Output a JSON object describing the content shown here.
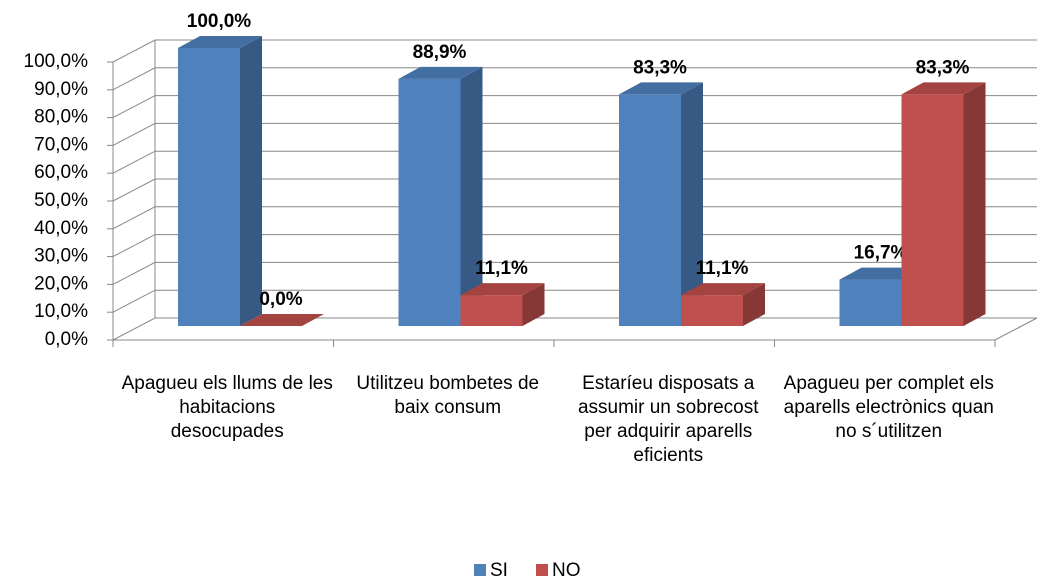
{
  "chart_data": {
    "type": "bar3d",
    "categories": [
      "Apagueu els llums de les habitacions desocupades",
      "Utilitzeu bombetes de baix consum",
      "Estaríeu disposats a assumir un sobrecost per adquirir aparells eficients",
      "Apagueu per complet els aparells electrònics quan no s´utilitzen"
    ],
    "series": [
      {
        "name": "SI",
        "color": "#4f81bd",
        "values": [
          100,
          88.9,
          83.3,
          16.7
        ],
        "value_labels": [
          "100,0%",
          "88,9%",
          "83,3%",
          "16,7%"
        ]
      },
      {
        "name": "NO",
        "color": "#c0504d",
        "values": [
          0,
          11.1,
          11.1,
          83.3
        ],
        "value_labels": [
          "0,0%",
          "11,1%",
          "11,1%",
          "83,3%"
        ]
      }
    ],
    "ylim": [
      0,
      100
    ],
    "yticks": [
      {
        "value": 0,
        "label": "0,0%"
      },
      {
        "value": 10,
        "label": "10,0%"
      },
      {
        "value": 20,
        "label": "20,0%"
      },
      {
        "value": 30,
        "label": "30,0%"
      },
      {
        "value": 40,
        "label": "40,0%"
      },
      {
        "value": 50,
        "label": "50,0%"
      },
      {
        "value": 60,
        "label": "60,0%"
      },
      {
        "value": 70,
        "label": "70,0%"
      },
      {
        "value": 80,
        "label": "80,0%"
      },
      {
        "value": 90,
        "label": "90,0%"
      },
      {
        "value": 100,
        "label": "100,0%"
      }
    ],
    "grid": true,
    "legend": "bottom"
  }
}
